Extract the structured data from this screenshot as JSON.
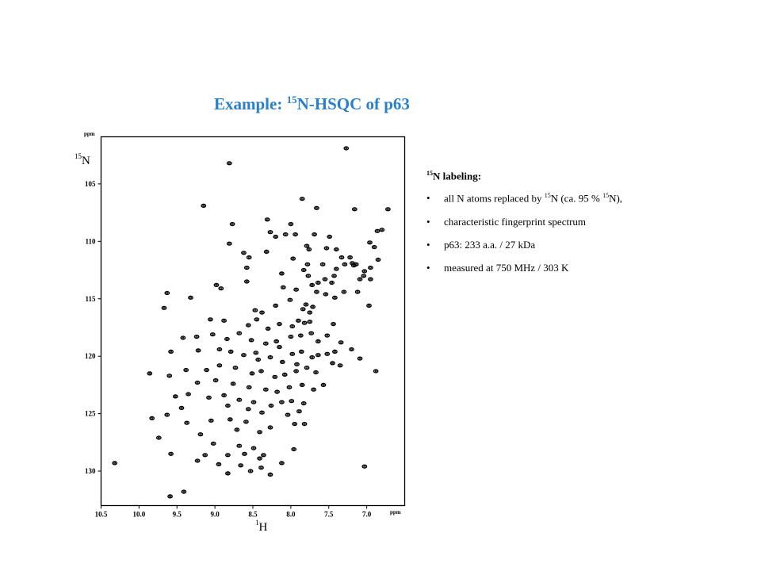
{
  "slide": {
    "title_prefix": "Example: ",
    "title_sup": "15",
    "title_rest": "N-HSQC of p63"
  },
  "notes": {
    "heading_sup": "15",
    "heading_rest": "N labeling:",
    "bullets": [
      {
        "parts": [
          {
            "t": "all N atoms replaced by "
          },
          {
            "sup": "15"
          },
          {
            "t": "N (ca. 95 % "
          },
          {
            "sup": "15"
          },
          {
            "t": "N),"
          }
        ]
      },
      {
        "parts": [
          {
            "t": "characteristic fingerprint spectrum"
          }
        ]
      },
      {
        "parts": [
          {
            "t": "p63: 233 a.a. / 27 kDa"
          }
        ]
      },
      {
        "parts": [
          {
            "t": "measured at 750 MHz / 303 K"
          }
        ]
      }
    ]
  },
  "chart_data": {
    "type": "scatter",
    "title": "",
    "xlabel_sup": "1",
    "xlabel": "H",
    "ylabel_sup": "15",
    "ylabel": "N",
    "x_unit": "ppm",
    "y_unit": "ppm",
    "xlim": [
      10.5,
      6.5
    ],
    "ylim": [
      100.9,
      133.0
    ],
    "x_ticks": [
      "10.5",
      "10.0",
      "9.5",
      "9.0",
      "8.5",
      "8.0",
      "7.5",
      "7.0"
    ],
    "x_tick_values": [
      10.5,
      10.0,
      9.5,
      9.0,
      8.5,
      8.0,
      7.5,
      7.0
    ],
    "y_ticks": [
      "105",
      "110",
      "115",
      "120",
      "125",
      "130"
    ],
    "y_tick_values": [
      105,
      110,
      115,
      120,
      125,
      130
    ],
    "grid": false,
    "legend": "none",
    "peak_color": "#000000",
    "points": [
      [
        7.27,
        101.9
      ],
      [
        8.81,
        103.2
      ],
      [
        7.85,
        106.3
      ],
      [
        9.15,
        106.9
      ],
      [
        8.77,
        108.5
      ],
      [
        8.31,
        108.1
      ],
      [
        8.0,
        108.5
      ],
      [
        7.66,
        107.1
      ],
      [
        7.16,
        107.2
      ],
      [
        6.72,
        107.2
      ],
      [
        8.27,
        109.2
      ],
      [
        8.2,
        109.6
      ],
      [
        8.07,
        109.4
      ],
      [
        7.94,
        109.4
      ],
      [
        7.69,
        109.4
      ],
      [
        7.49,
        109.6
      ],
      [
        6.86,
        109.1
      ],
      [
        6.8,
        109.0
      ],
      [
        8.81,
        110.2
      ],
      [
        8.62,
        111.0
      ],
      [
        7.79,
        110.4
      ],
      [
        7.76,
        110.7
      ],
      [
        7.53,
        110.6
      ],
      [
        7.4,
        110.7
      ],
      [
        6.96,
        110.1
      ],
      [
        6.9,
        110.5
      ],
      [
        8.55,
        111.4
      ],
      [
        8.32,
        110.9
      ],
      [
        7.97,
        111.5
      ],
      [
        7.14,
        112.0
      ],
      [
        6.85,
        111.6
      ],
      [
        7.33,
        111.4
      ],
      [
        7.22,
        111.4
      ],
      [
        7.19,
        111.9
      ],
      [
        6.95,
        112.3
      ],
      [
        7.04,
        113.0
      ],
      [
        7.09,
        113.3
      ],
      [
        7.17,
        112.1
      ],
      [
        8.58,
        112.3
      ],
      [
        8.12,
        112.8
      ],
      [
        7.83,
        112.5
      ],
      [
        7.77,
        113.0
      ],
      [
        7.43,
        113.0
      ],
      [
        7.46,
        113.6
      ],
      [
        7.55,
        113.3
      ],
      [
        7.64,
        113.6
      ],
      [
        7.72,
        113.8
      ],
      [
        7.12,
        114.4
      ],
      [
        6.95,
        113.3
      ],
      [
        7.03,
        112.6
      ],
      [
        7.29,
        112.0
      ],
      [
        7.4,
        112.4
      ],
      [
        8.98,
        113.8
      ],
      [
        8.92,
        114.1
      ],
      [
        8.58,
        113.5
      ],
      [
        8.1,
        114.0
      ],
      [
        7.93,
        114.2
      ],
      [
        7.54,
        114.6
      ],
      [
        7.42,
        114.9
      ],
      [
        7.3,
        114.4
      ],
      [
        6.97,
        115.6
      ],
      [
        9.63,
        114.5
      ],
      [
        9.67,
        115.8
      ],
      [
        9.32,
        114.9
      ],
      [
        7.8,
        115.5
      ],
      [
        7.66,
        114.4
      ],
      [
        7.71,
        115.7
      ],
      [
        7.75,
        116.2
      ],
      [
        7.84,
        115.9
      ],
      [
        8.01,
        115.1
      ],
      [
        8.2,
        115.6
      ],
      [
        8.38,
        116.2
      ],
      [
        8.47,
        116.0
      ],
      [
        9.06,
        116.8
      ],
      [
        8.88,
        116.9
      ],
      [
        8.56,
        117.3
      ],
      [
        8.45,
        116.8
      ],
      [
        8.3,
        117.6
      ],
      [
        8.15,
        117.2
      ],
      [
        7.98,
        117.4
      ],
      [
        7.82,
        117.1
      ],
      [
        7.9,
        116.9
      ],
      [
        7.75,
        117.0
      ],
      [
        7.44,
        117.2
      ],
      [
        7.52,
        118.2
      ],
      [
        9.24,
        118.3
      ],
      [
        9.42,
        118.4
      ],
      [
        9.03,
        118.1
      ],
      [
        8.84,
        118.5
      ],
      [
        8.68,
        118.0
      ],
      [
        8.52,
        118.6
      ],
      [
        8.33,
        118.9
      ],
      [
        8.19,
        118.7
      ],
      [
        8.0,
        118.3
      ],
      [
        7.87,
        118.2
      ],
      [
        7.73,
        118.0
      ],
      [
        7.64,
        118.7
      ],
      [
        7.34,
        118.8
      ],
      [
        9.58,
        119.6
      ],
      [
        9.22,
        119.5
      ],
      [
        8.94,
        119.4
      ],
      [
        8.79,
        119.6
      ],
      [
        8.62,
        119.9
      ],
      [
        8.43,
        120.3
      ],
      [
        8.27,
        120.1
      ],
      [
        8.11,
        120.5
      ],
      [
        7.98,
        119.8
      ],
      [
        7.86,
        119.6
      ],
      [
        7.72,
        120.1
      ],
      [
        7.52,
        119.8
      ],
      [
        7.42,
        119.6
      ],
      [
        7.2,
        119.4
      ],
      [
        7.09,
        120.2
      ],
      [
        9.38,
        121.2
      ],
      [
        9.11,
        121.2
      ],
      [
        8.94,
        120.8
      ],
      [
        8.73,
        121.0
      ],
      [
        8.51,
        121.5
      ],
      [
        8.39,
        121.3
      ],
      [
        8.21,
        121.8
      ],
      [
        8.08,
        121.6
      ],
      [
        7.93,
        121.3
      ],
      [
        7.79,
        121.0
      ],
      [
        7.67,
        121.4
      ],
      [
        7.45,
        120.6
      ],
      [
        7.35,
        120.8
      ],
      [
        6.88,
        121.3
      ],
      [
        9.86,
        121.5
      ],
      [
        9.6,
        121.7
      ],
      [
        9.23,
        122.3
      ],
      [
        8.99,
        122.1
      ],
      [
        8.76,
        122.4
      ],
      [
        8.55,
        122.7
      ],
      [
        8.33,
        122.9
      ],
      [
        8.18,
        123.1
      ],
      [
        8.02,
        122.7
      ],
      [
        7.85,
        122.5
      ],
      [
        7.57,
        122.5
      ],
      [
        7.7,
        122.9
      ],
      [
        9.52,
        123.5
      ],
      [
        9.35,
        123.3
      ],
      [
        9.08,
        123.6
      ],
      [
        8.88,
        123.4
      ],
      [
        8.68,
        123.8
      ],
      [
        8.49,
        124.0
      ],
      [
        8.26,
        124.3
      ],
      [
        8.12,
        124.0
      ],
      [
        7.99,
        123.9
      ],
      [
        7.83,
        124.1
      ],
      [
        9.44,
        124.5
      ],
      [
        8.83,
        124.3
      ],
      [
        8.56,
        124.6
      ],
      [
        8.38,
        124.9
      ],
      [
        8.04,
        125.1
      ],
      [
        7.89,
        124.8
      ],
      [
        9.83,
        125.4
      ],
      [
        9.63,
        125.1
      ],
      [
        9.37,
        125.8
      ],
      [
        9.05,
        125.6
      ],
      [
        8.8,
        125.5
      ],
      [
        8.59,
        125.7
      ],
      [
        8.27,
        126.2
      ],
      [
        7.95,
        125.9
      ],
      [
        7.82,
        125.9
      ],
      [
        8.71,
        126.4
      ],
      [
        9.19,
        126.8
      ],
      [
        8.41,
        126.6
      ],
      [
        9.74,
        127.1
      ],
      [
        9.02,
        127.6
      ],
      [
        8.68,
        127.8
      ],
      [
        8.49,
        128.0
      ],
      [
        7.96,
        128.1
      ],
      [
        9.58,
        128.5
      ],
      [
        9.13,
        128.6
      ],
      [
        8.83,
        128.6
      ],
      [
        8.61,
        128.5
      ],
      [
        8.36,
        128.6
      ],
      [
        8.41,
        128.9
      ],
      [
        8.12,
        129.3
      ],
      [
        9.23,
        129.1
      ],
      [
        8.95,
        129.4
      ],
      [
        8.66,
        129.5
      ],
      [
        8.39,
        129.7
      ],
      [
        8.53,
        130.0
      ],
      [
        10.32,
        129.3
      ],
      [
        8.83,
        130.2
      ],
      [
        8.27,
        130.3
      ],
      [
        7.03,
        129.6
      ],
      [
        9.59,
        132.2
      ],
      [
        9.41,
        131.8
      ],
      [
        7.64,
        119.9
      ],
      [
        7.92,
        120.7
      ],
      [
        8.15,
        119.2
      ],
      [
        8.46,
        119.7
      ],
      [
        7.78,
        112.0
      ],
      [
        7.58,
        112.0
      ]
    ]
  }
}
